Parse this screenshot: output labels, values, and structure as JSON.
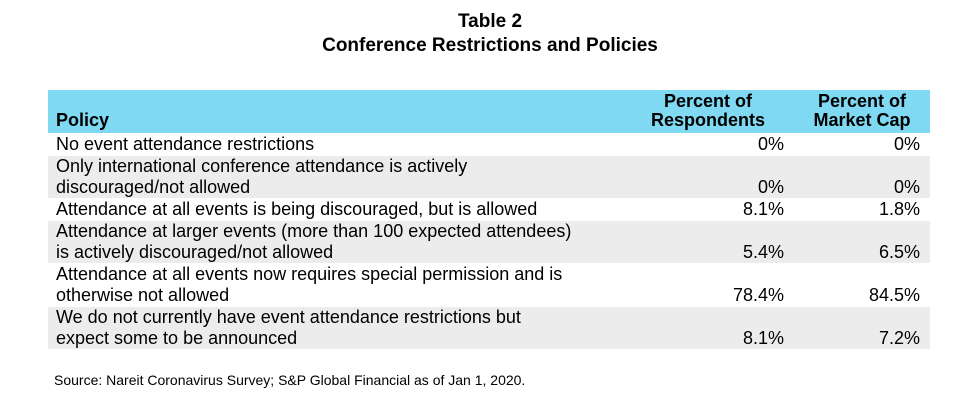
{
  "title": "Table 2",
  "subtitle": "Conference Restrictions and Policies",
  "table": {
    "headers": {
      "policy": "Policy",
      "respondents": [
        "Percent of",
        "Respondents"
      ],
      "market_cap": [
        "Percent of",
        "Market Cap"
      ]
    },
    "rows": [
      {
        "policy": [
          "No event attendance restrictions"
        ],
        "respondents": "0%",
        "market_cap": "0%"
      },
      {
        "policy": [
          "Only international conference attendance is actively",
          "discouraged/not allowed"
        ],
        "respondents": "0%",
        "market_cap": "0%"
      },
      {
        "policy": [
          "Attendance at all events is being discouraged, but is allowed"
        ],
        "respondents": "8.1%",
        "market_cap": "1.8%"
      },
      {
        "policy": [
          "Attendance at larger events (more than 100 expected attendees)",
          "is actively discouraged/not allowed"
        ],
        "respondents": "5.4%",
        "market_cap": "6.5%"
      },
      {
        "policy": [
          "Attendance at all events now requires special permission and is",
          "otherwise not allowed"
        ],
        "respondents": "78.4%",
        "market_cap": "84.5%"
      },
      {
        "policy": [
          "We do not currently have event attendance restrictions but",
          "expect some to be announced"
        ],
        "respondents": "8.1%",
        "market_cap": "7.2%"
      }
    ]
  },
  "source": "Source: Nareit Coronavirus Survey; S&P Global Financial as of Jan 1, 2020.",
  "colors": {
    "header_bg": "#7fd9f2",
    "alt_row_bg": "#ececec"
  }
}
